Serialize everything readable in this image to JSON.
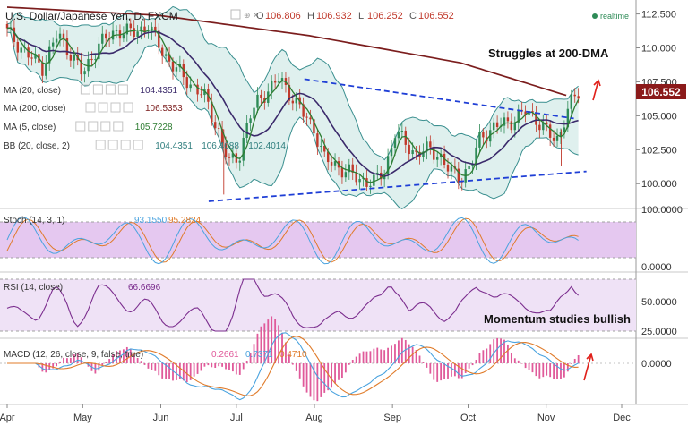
{
  "header": {
    "symbol_title": "U.S. Dollar/Japanese Yen, D, FXCM",
    "ohlc": [
      {
        "label": "O",
        "value": "106.806"
      },
      {
        "label": "H",
        "value": "106.932"
      },
      {
        "label": "L",
        "value": "106.252"
      },
      {
        "label": "C",
        "value": "106.552"
      }
    ],
    "realtime_label": "realtime"
  },
  "indicators": [
    {
      "label": "MA (20, close)",
      "values": [
        "104.4351"
      ],
      "color": "#3b2a6b"
    },
    {
      "label": "MA (200, close)",
      "values": [
        "106.5353"
      ],
      "color": "#7b1d1d"
    },
    {
      "label": "MA (5, close)",
      "values": [
        "105.7228"
      ],
      "color": "#2e7d32"
    },
    {
      "label": "BB (20, close, 2)",
      "values": [
        "104.4351",
        "106.4688",
        "102.4014"
      ],
      "color": "#2e7d7d"
    }
  ],
  "annotations": {
    "dma_note": "Struggles at 200-DMA",
    "momentum_note": "Momentum studies bullish"
  },
  "price_badge": "106.552",
  "colors": {
    "up": "#2e8b57",
    "down": "#c0392b",
    "ma20": "#3b2a6b",
    "ma200": "#7b1d1d",
    "ma5": "#2e7d32",
    "bb": "#3a8f8f",
    "bbfill": "#dff0ee",
    "trend": "#1f3fd6",
    "stoch_fill": "#e5c8f0",
    "rsi_fill": "#efe2f6",
    "stoch_k": "#4aa3df",
    "stoch_d": "#e07b2a",
    "rsi": "#7b2d8e",
    "macd": "#4aa3df",
    "signal": "#e07b2a",
    "hist": "#e05a9a",
    "arrow": "#e0201a"
  },
  "chart_data": [
    {
      "type": "candlestick",
      "title": "U.S. Dollar/Japanese Yen, D, FXCM",
      "ylim": [
        98.5,
        113.0
      ],
      "y_ticks": [
        "100.000",
        "102.500",
        "105.000",
        "107.500",
        "110.000",
        "112.500"
      ],
      "x_ticks": [
        "Apr",
        "May",
        "Jun",
        "Jul",
        "Aug",
        "Sep",
        "Oct",
        "Nov",
        "Dec"
      ],
      "x_tick_days": [
        0,
        30,
        61,
        91,
        122,
        153,
        183,
        214,
        244
      ],
      "trendlines": [
        {
          "name": "upper",
          "points": [
            [
              118,
              107.7
            ],
            [
              225,
              104.8
            ]
          ]
        },
        {
          "name": "lower",
          "points": [
            [
              80,
              98.7
            ],
            [
              230,
              100.9
            ]
          ]
        }
      ],
      "ma200": [
        [
          0,
          113.0
        ],
        [
          60,
          112.4
        ],
        [
          120,
          110.9
        ],
        [
          180,
          108.9
        ],
        [
          222,
          106.5
        ]
      ]
    },
    {
      "type": "line",
      "title": "Stoch (14, 3, 1)",
      "values_text": [
        "93.1550",
        "95.2824"
      ],
      "ylim": [
        0,
        100
      ],
      "y_ticks": [
        "0.0000",
        "100.0000"
      ],
      "band": [
        20,
        80
      ]
    },
    {
      "type": "line",
      "title": "RSI (14, close)",
      "values_text": [
        "66.6696"
      ],
      "ylim": [
        25,
        75
      ],
      "y_ticks": [
        "25.0000",
        "50.0000"
      ],
      "band": [
        30,
        70
      ]
    },
    {
      "type": "line",
      "title": "MACD (12, 26, close, 9, false, true)",
      "values_text": [
        "0.2661",
        "0.7371",
        "0.4710"
      ],
      "ylim": [
        -2.5,
        2.5
      ],
      "y_ticks": [
        "0.0000"
      ]
    }
  ]
}
